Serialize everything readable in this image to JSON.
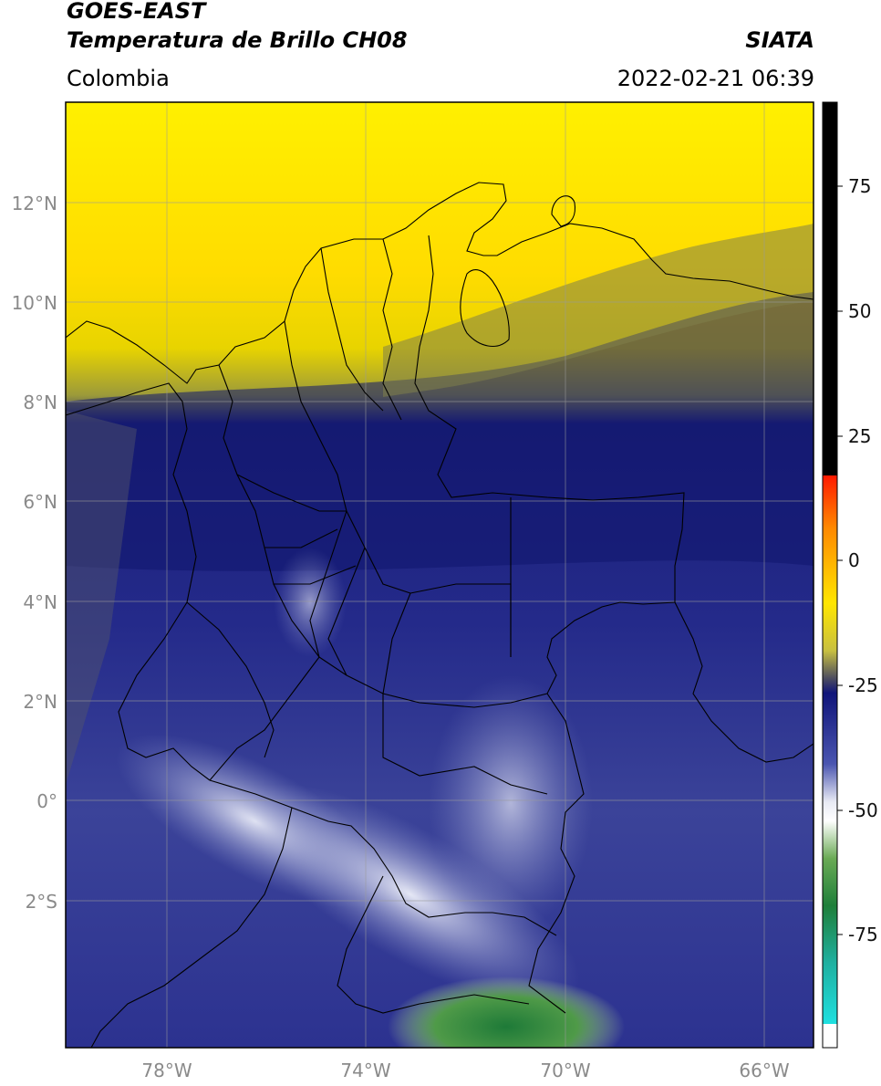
{
  "header": {
    "satellite": "GOES-EAST",
    "product": "Temperatura de Brillo CH08",
    "region": "Colombia",
    "brand": "SIATA",
    "timestamp": "2022-02-21 06:39"
  },
  "map": {
    "lat_labels": [
      "12°N",
      "10°N",
      "8°N",
      "6°N",
      "4°N",
      "2°N",
      "0°",
      "2°S"
    ],
    "lon_labels": [
      "78°W",
      "74°W",
      "70°W",
      "66°W"
    ],
    "gridlines": true
  },
  "colorbar": {
    "ticks": [
      "75",
      "50",
      "25",
      "0",
      "-25",
      "-50",
      "-75"
    ],
    "colors": {
      "saturated": "#000000",
      "warm": "#ff2200",
      "yellow": "#ffe600",
      "dark_blue": "#12187a",
      "pale": "#ffffff",
      "green": "#2e8b3a",
      "cyan": "#1fd6d6"
    }
  }
}
